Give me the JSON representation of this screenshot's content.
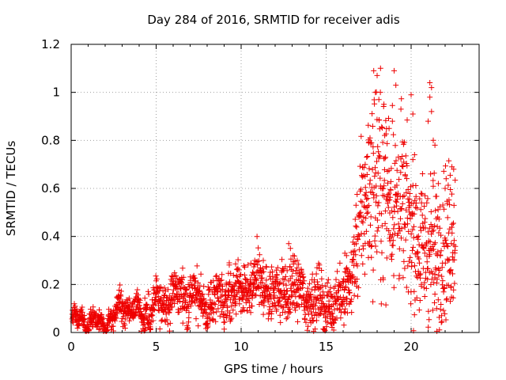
{
  "chart_data": {
    "type": "scatter",
    "title": "Day 284 of 2016, SRMTID for receiver adis",
    "xlabel": "GPS time / hours",
    "ylabel": "SRMTID / TECUs",
    "xlim": [
      0,
      24
    ],
    "ylim": [
      0,
      1.2
    ],
    "xticks": [
      0,
      5,
      10,
      15,
      20
    ],
    "xtick_labels": [
      "0",
      "5",
      "10",
      "15",
      "20"
    ],
    "yticks": [
      0,
      0.2,
      0.4,
      0.6,
      0.8,
      1,
      1.2
    ],
    "ytick_labels": [
      "0",
      "0.2",
      "0.4",
      "0.6",
      "0.8",
      "1",
      "1.2"
    ],
    "grid": true,
    "marker": "plus",
    "series": [
      {
        "name": "adis",
        "color": "#ee0000",
        "trend": [
          [
            0.0,
            0.0
          ],
          [
            0.1,
            0.04
          ],
          [
            0.5,
            0.06
          ],
          [
            1.0,
            0.05
          ],
          [
            1.5,
            0.03
          ],
          [
            2.0,
            0.04
          ],
          [
            2.5,
            0.06
          ],
          [
            3.0,
            0.12
          ],
          [
            3.5,
            0.09
          ],
          [
            4.0,
            0.09
          ],
          [
            4.5,
            0.08
          ],
          [
            5.0,
            0.11
          ],
          [
            5.5,
            0.14
          ],
          [
            6.0,
            0.15
          ],
          [
            6.5,
            0.16
          ],
          [
            7.0,
            0.16
          ],
          [
            7.5,
            0.14
          ],
          [
            8.0,
            0.11
          ],
          [
            8.5,
            0.14
          ],
          [
            9.0,
            0.15
          ],
          [
            9.5,
            0.16
          ],
          [
            10.0,
            0.16
          ],
          [
            10.5,
            0.18
          ],
          [
            11.0,
            0.2
          ],
          [
            11.5,
            0.19
          ],
          [
            12.0,
            0.16
          ],
          [
            12.5,
            0.17
          ],
          [
            13.0,
            0.19
          ],
          [
            13.5,
            0.16
          ],
          [
            14.0,
            0.15
          ],
          [
            14.5,
            0.13
          ],
          [
            15.0,
            0.12
          ],
          [
            15.5,
            0.12
          ],
          [
            16.0,
            0.15
          ],
          [
            16.5,
            0.24
          ],
          [
            17.0,
            0.45
          ],
          [
            17.5,
            0.6
          ],
          [
            18.0,
            0.62
          ],
          [
            18.5,
            0.6
          ],
          [
            19.0,
            0.55
          ],
          [
            19.5,
            0.52
          ],
          [
            20.0,
            0.43
          ],
          [
            20.5,
            0.35
          ],
          [
            21.0,
            0.36
          ],
          [
            21.5,
            0.32
          ],
          [
            22.0,
            0.38
          ],
          [
            22.5,
            0.42
          ],
          [
            22.6,
            0.42
          ]
        ],
        "spread": [
          [
            0.0,
            0.02
          ],
          [
            2.0,
            0.02
          ],
          [
            5.0,
            0.04
          ],
          [
            8.0,
            0.05
          ],
          [
            13.0,
            0.06
          ],
          [
            15.5,
            0.05
          ],
          [
            16.5,
            0.06
          ],
          [
            17.0,
            0.14
          ],
          [
            18.0,
            0.2
          ],
          [
            20.0,
            0.15
          ],
          [
            21.0,
            0.15
          ],
          [
            22.6,
            0.15
          ]
        ],
        "peaks": [
          [
            17.8,
            1.09
          ],
          [
            17.9,
            1.0
          ],
          [
            18.0,
            1.07
          ],
          [
            18.2,
            1.1
          ],
          [
            18.1,
            0.97
          ],
          [
            18.4,
            0.95
          ],
          [
            19.0,
            1.09
          ],
          [
            19.1,
            1.03
          ],
          [
            19.4,
            0.93
          ],
          [
            20.0,
            0.99
          ],
          [
            20.1,
            0.91
          ],
          [
            21.1,
            1.04
          ],
          [
            21.2,
            1.02
          ],
          [
            21.1,
            0.98
          ],
          [
            21.2,
            0.92
          ],
          [
            21.0,
            0.88
          ],
          [
            21.3,
            0.8
          ],
          [
            21.4,
            0.78
          ],
          [
            22.4,
            0.69
          ],
          [
            22.5,
            0.68
          ],
          [
            18.7,
            0.85
          ],
          [
            18.9,
            0.88
          ],
          [
            17.5,
            0.79
          ],
          [
            17.3,
            0.7
          ],
          [
            20.1,
            0.72
          ],
          [
            20.2,
            0.74
          ],
          [
            21.6,
            0.62
          ],
          [
            22.0,
            0.6
          ],
          [
            20.6,
            0.2
          ],
          [
            20.8,
            0.15
          ],
          [
            21.5,
            0.1
          ],
          [
            21.4,
            0.16
          ],
          [
            22.1,
            0.14
          ],
          [
            22.3,
            0.13
          ],
          [
            12.8,
            0.37
          ],
          [
            12.9,
            0.35
          ],
          [
            13.3,
            0.3
          ],
          [
            9.3,
            0.29
          ],
          [
            10.8,
            0.3
          ],
          [
            11.3,
            0.3
          ],
          [
            16.1,
            0.33
          ],
          [
            16.2,
            0.32
          ]
        ],
        "point_count": 2000
      }
    ]
  }
}
